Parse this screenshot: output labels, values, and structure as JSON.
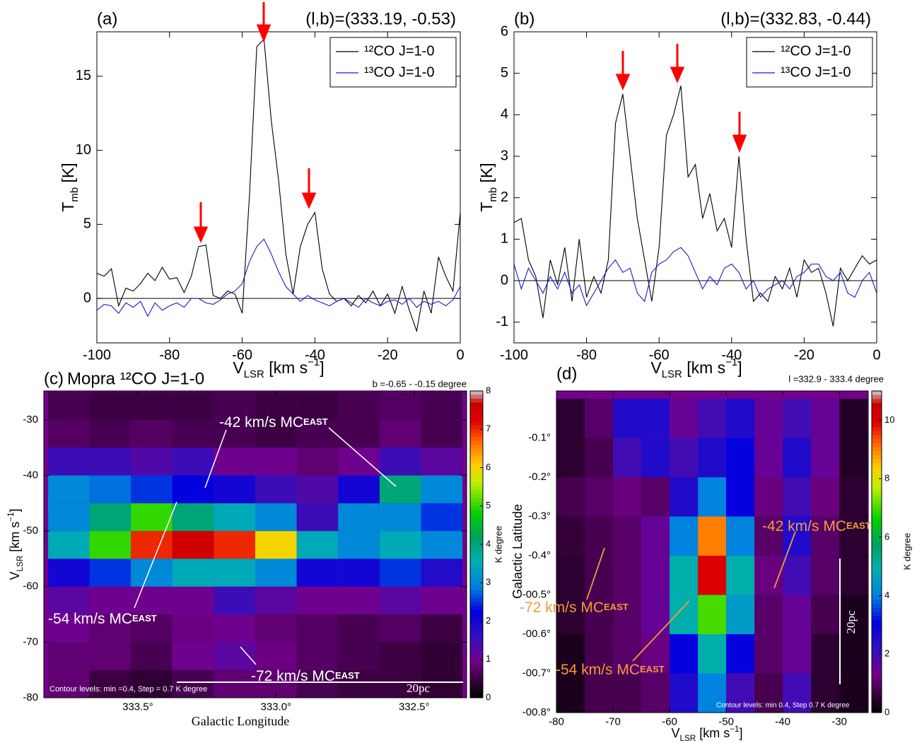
{
  "chart_data": [
    {
      "type": "line",
      "label": "(a)",
      "title": "(l,b)=(333.19, -0.53)",
      "xlabel": [
        {
          "text": "V"
        },
        {
          "text": "LSR",
          "style": "sub"
        },
        {
          "text": " [km s"
        },
        {
          "text": "−1",
          "style": "sup"
        },
        {
          "text": "]"
        }
      ],
      "ylabel": [
        {
          "text": "T"
        },
        {
          "text": "mb",
          "style": "sub"
        },
        {
          "text": " [K]"
        }
      ],
      "xlim": [
        -100,
        0
      ],
      "ylim": [
        -3,
        18
      ],
      "xticks": [
        -100,
        -80,
        -60,
        -40,
        -20,
        0
      ],
      "yticks": [
        0,
        5,
        10,
        15
      ],
      "legend": "upper right",
      "x": [
        -100,
        -98,
        -96,
        -94,
        -92,
        -90,
        -88,
        -86,
        -84,
        -82,
        -80,
        -78,
        -76,
        -74,
        -72,
        -70,
        -68,
        -66,
        -64,
        -62,
        -60,
        -58,
        -56,
        -54,
        -52,
        -50,
        -48,
        -46,
        -44,
        -42,
        -40,
        -38,
        -36,
        -34,
        -32,
        -30,
        -28,
        -26,
        -24,
        -22,
        -20,
        -18,
        -16,
        -14,
        -12,
        -10,
        -8,
        -6,
        -4,
        -2,
        0
      ],
      "series": [
        {
          "name": "¹²CO J=1-0",
          "color": "#000000",
          "values": [
            1.7,
            1.5,
            2.0,
            -0.5,
            0.7,
            0.5,
            1.0,
            1.7,
            1.2,
            2.1,
            1.3,
            1.4,
            0.4,
            1.5,
            3.5,
            3.6,
            0.2,
            0.0,
            0.5,
            0.3,
            -1.0,
            7.0,
            17.0,
            17.5,
            12.0,
            8.0,
            3.0,
            0.3,
            3.5,
            5.0,
            5.8,
            2.0,
            0.3,
            -0.2,
            0.0,
            -0.5,
            0.2,
            -0.3,
            0.5,
            -0.5,
            0.3,
            -1.0,
            0.8,
            -0.8,
            -2.2,
            0.5,
            -1.0,
            2.8,
            1.5,
            0.5,
            5.8
          ]
        },
        {
          "name": "¹³CO J=1-0",
          "color": "#1a1ad0",
          "values": [
            -0.8,
            -0.4,
            -0.5,
            -1.0,
            -0.3,
            -0.6,
            -0.2,
            -1.2,
            -0.3,
            -0.8,
            -0.5,
            -0.3,
            -0.6,
            0.0,
            0.0,
            -0.3,
            -0.4,
            -0.1,
            0.3,
            0.5,
            1.0,
            2.5,
            3.5,
            4.0,
            3.0,
            1.8,
            0.8,
            0.3,
            -0.2,
            0.2,
            -0.1,
            -0.3,
            -0.5,
            -0.2,
            0.0,
            -0.3,
            -0.6,
            0.0,
            -0.3,
            -0.5,
            -0.2,
            -0.1,
            -0.4,
            0.0,
            -0.6,
            -0.2,
            -0.4,
            -0.2,
            -0.5,
            -0.1,
            0.8
          ]
        }
      ]
    },
    {
      "type": "line",
      "label": "(b)",
      "title": "(l,b)=(332.83, -0.44)",
      "xlabel": [
        {
          "text": "V"
        },
        {
          "text": "LSR",
          "style": "sub"
        },
        {
          "text": " [km s"
        },
        {
          "text": "−1",
          "style": "sup"
        },
        {
          "text": "]"
        }
      ],
      "ylabel": [
        {
          "text": "T"
        },
        {
          "text": "mb",
          "style": "sub"
        },
        {
          "text": " [K]"
        }
      ],
      "xlim": [
        -100,
        0
      ],
      "ylim": [
        -1.5,
        6
      ],
      "xticks": [
        -100,
        -80,
        -60,
        -40,
        -20,
        0
      ],
      "yticks": [
        -1,
        0,
        1,
        2,
        3,
        4,
        5,
        6
      ],
      "legend": "upper right",
      "x": [
        -100,
        -98,
        -96,
        -94,
        -92,
        -90,
        -88,
        -86,
        -84,
        -82,
        -80,
        -78,
        -76,
        -74,
        -72,
        -70,
        -68,
        -66,
        -64,
        -62,
        -60,
        -58,
        -56,
        -54,
        -52,
        -50,
        -48,
        -46,
        -44,
        -42,
        -40,
        -38,
        -36,
        -34,
        -32,
        -30,
        -28,
        -26,
        -24,
        -22,
        -20,
        -18,
        -16,
        -14,
        -12,
        -10,
        -8,
        -6,
        -4,
        -2,
        0
      ],
      "series": [
        {
          "name": "¹²CO J=1-0",
          "color": "#000000",
          "values": [
            1.4,
            1.5,
            0.5,
            0.1,
            -0.9,
            0.5,
            -0.1,
            0.8,
            -0.5,
            1.0,
            -0.4,
            0.1,
            -0.3,
            0.5,
            3.8,
            4.5,
            3.0,
            1.5,
            0.5,
            -0.5,
            0.8,
            3.5,
            4.0,
            4.7,
            2.5,
            2.8,
            1.5,
            2.1,
            1.2,
            1.5,
            0.8,
            3.0,
            1.0,
            -0.5,
            -0.3,
            -0.5,
            0.1,
            -0.2,
            0.3,
            -0.4,
            0.5,
            0.2,
            0.3,
            -0.3,
            -1.1,
            0.3,
            0.0,
            0.3,
            0.6,
            0.4,
            0.5
          ]
        },
        {
          "name": "¹³CO J=1-0",
          "color": "#1a1ad0",
          "values": [
            0.4,
            -0.2,
            0.3,
            0.0,
            -0.3,
            0.1,
            -0.2,
            0.2,
            -0.3,
            -0.1,
            -0.6,
            -0.3,
            0.0,
            0.3,
            0.5,
            0.2,
            0.3,
            -0.3,
            -0.5,
            0.2,
            0.4,
            0.5,
            0.7,
            0.8,
            0.6,
            0.2,
            -0.2,
            0.1,
            -0.1,
            0.3,
            0.4,
            0.2,
            -0.2,
            0.0,
            -0.4,
            -0.2,
            -0.1,
            0.0,
            -0.2,
            0.1,
            0.2,
            0.4,
            0.4,
            0.1,
            0.0,
            0.2,
            -0.3,
            -0.4,
            0.0,
            0.2,
            -0.3
          ]
        }
      ]
    },
    {
      "type": "heatmap",
      "label": "(c)",
      "title": "Mopra ¹²CO J=1-0",
      "subtitle": "b =-0.65 - -0.15 degree",
      "xlabel": [
        {
          "text": "Galactic Longitude"
        }
      ],
      "ylabel": [
        {
          "text": "V"
        },
        {
          "text": "LSR",
          "style": "sub"
        },
        {
          "text": " [km s"
        },
        {
          "text": "−1",
          "style": "sup"
        },
        {
          "text": "]"
        }
      ],
      "xlim": [
        333.84,
        332.31
      ],
      "ylim": [
        -80,
        -24.8
      ],
      "xticks": [
        {
          "value": 333.5,
          "label": "333.5°"
        },
        {
          "value": 333.0,
          "label": "333.0°"
        },
        {
          "value": 332.5,
          "label": "332.5°"
        }
      ],
      "yticks": [
        -80,
        -70,
        -60,
        -50,
        -40,
        -30
      ],
      "clim": [
        0,
        8
      ],
      "cticks": [
        0,
        1,
        2,
        3,
        4,
        5,
        6,
        7,
        8
      ],
      "clabel": "K degree",
      "annotations": [
        {
          "text": "-42 km/s MC",
          "sub": "EAST"
        },
        {
          "text": "-54 km/s MC",
          "sub": "EAST"
        },
        {
          "text": "-72 km/s MC",
          "sub": "EAST"
        }
      ],
      "note": "Contour levels: min =0.4, Step = 0.7 K degree",
      "scalebar": "20pc",
      "x": [
        333.75,
        333.6,
        333.45,
        333.3,
        333.15,
        333.0,
        332.85,
        332.7,
        332.55,
        332.4
      ],
      "y": [
        -77.5,
        -72.5,
        -67.5,
        -62.5,
        -57.5,
        -52.5,
        -47.5,
        -42.5,
        -37.5,
        -32.5,
        -27.5
      ],
      "z": [
        [
          0.8,
          0.5,
          0.4,
          0.6,
          0.8,
          0.8,
          0.6,
          0.5,
          0.5,
          0.4
        ],
        [
          0.8,
          0.8,
          0.6,
          1.0,
          1.2,
          0.9,
          0.7,
          0.6,
          0.5,
          0.4
        ],
        [
          1.0,
          0.8,
          0.7,
          0.9,
          1.0,
          0.8,
          0.7,
          0.6,
          0.7,
          0.5
        ],
        [
          1.2,
          1.0,
          1.0,
          1.0,
          1.5,
          1.2,
          1.0,
          1.0,
          1.2,
          1.0
        ],
        [
          2.0,
          2.5,
          3.0,
          3.5,
          3.5,
          3.0,
          2.0,
          2.0,
          2.5,
          1.8
        ],
        [
          3.5,
          5.0,
          7.0,
          7.5,
          7.0,
          6.0,
          3.5,
          3.0,
          3.5,
          3.0
        ],
        [
          3.0,
          4.0,
          5.0,
          4.0,
          3.5,
          3.0,
          1.5,
          3.0,
          3.0,
          2.5
        ],
        [
          3.0,
          2.8,
          2.5,
          2.2,
          2.0,
          1.5,
          1.3,
          2.0,
          4.0,
          3.0
        ],
        [
          1.5,
          1.5,
          1.3,
          1.5,
          1.0,
          1.0,
          0.8,
          1.0,
          1.5,
          1.2
        ],
        [
          0.7,
          0.6,
          0.7,
          0.6,
          0.6,
          0.5,
          0.6,
          0.6,
          0.8,
          0.6
        ],
        [
          0.6,
          0.5,
          0.5,
          0.5,
          0.6,
          0.5,
          0.5,
          0.6,
          0.7,
          0.6
        ]
      ]
    },
    {
      "type": "heatmap",
      "label": "(d)",
      "subtitle": "l =332.9 - 333.4 degree",
      "xlabel": [
        {
          "text": "V"
        },
        {
          "text": "LSR",
          "style": "sub"
        },
        {
          "text": " [km s"
        },
        {
          "text": "−1",
          "style": "sup"
        },
        {
          "text": "]"
        }
      ],
      "ylabel": [
        {
          "text": "Galactic Latitude"
        }
      ],
      "xlim": [
        -80,
        -24.9
      ],
      "ylim": [
        -0.8,
        0.02
      ],
      "xticks": [
        -80,
        -70,
        -60,
        -50,
        -40,
        -30
      ],
      "yticks": [
        {
          "value": -0.8,
          "label": "-00.8°"
        },
        {
          "value": -0.7,
          "label": "-00.7°"
        },
        {
          "value": -0.6,
          "label": "-00.6°"
        },
        {
          "value": -0.5,
          "label": "-00.5°"
        },
        {
          "value": -0.4,
          "label": "-0.4°"
        },
        {
          "value": -0.3,
          "label": "-0.3°"
        },
        {
          "value": -0.2,
          "label": "-0.2°"
        },
        {
          "value": -0.1,
          "label": "-0.1°"
        }
      ],
      "clim": [
        0,
        11
      ],
      "cticks": [
        0,
        2,
        4,
        6,
        8,
        10
      ],
      "clabel": "K degree",
      "annotations": [
        {
          "text": "-42 km/s MC",
          "sub": "EAST"
        },
        {
          "text": "-72 km/s MC",
          "sub": "EAST"
        },
        {
          "text": "-54 km/s MC",
          "sub": "EAST"
        }
      ],
      "note": "Contour levels: min 0.4, Step 0.7 K degree",
      "scalebar": "20pc",
      "x": [
        -77.5,
        -72.5,
        -67.5,
        -62.5,
        -57.5,
        -52.5,
        -47.5,
        -42.5,
        -37.5,
        -32.5,
        -27.5
      ],
      "y": [
        -0.75,
        -0.65,
        -0.55,
        -0.45,
        -0.35,
        -0.25,
        -0.15,
        -0.05
      ],
      "z": [
        [
          0.3,
          0.8,
          0.8,
          1.0,
          2.5,
          4.0,
          2.0,
          0.8,
          2.0,
          0.5,
          0.3
        ],
        [
          0.3,
          0.8,
          1.0,
          1.2,
          3.0,
          5.0,
          3.0,
          1.0,
          1.5,
          0.5,
          0.3
        ],
        [
          0.5,
          0.8,
          1.0,
          1.5,
          5.0,
          7.0,
          4.5,
          1.0,
          1.5,
          0.8,
          0.3
        ],
        [
          0.5,
          0.8,
          1.0,
          1.5,
          5.0,
          10.0,
          5.0,
          1.2,
          2.0,
          1.0,
          0.5
        ],
        [
          0.6,
          0.8,
          1.0,
          1.5,
          4.0,
          9.0,
          4.0,
          1.0,
          2.5,
          1.0,
          0.5
        ],
        [
          0.8,
          1.0,
          1.2,
          1.0,
          2.5,
          4.0,
          3.0,
          1.2,
          2.0,
          1.2,
          0.5
        ],
        [
          0.5,
          0.8,
          2.0,
          2.5,
          2.0,
          2.5,
          3.0,
          1.5,
          2.5,
          1.5,
          0.4
        ],
        [
          0.5,
          1.0,
          2.5,
          2.5,
          1.5,
          2.0,
          2.5,
          1.5,
          2.0,
          1.5,
          0.4
        ]
      ]
    }
  ]
}
